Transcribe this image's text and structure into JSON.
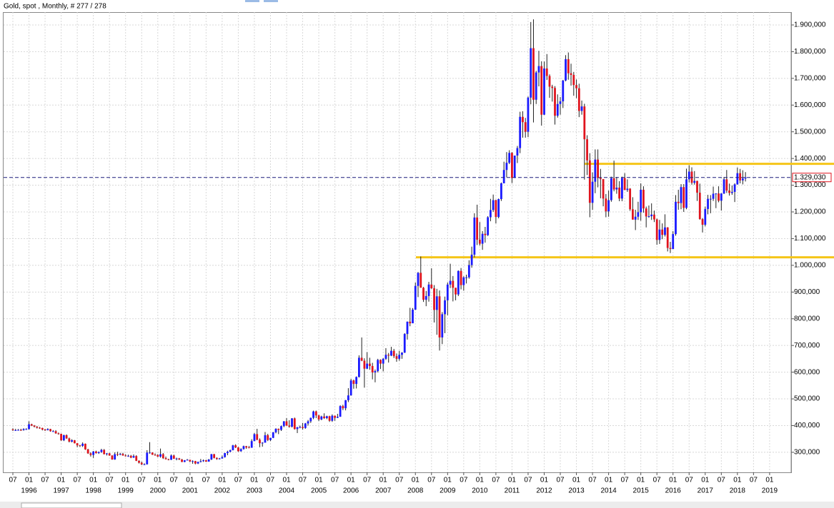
{
  "chart_data": {
    "type": "candlestick",
    "title": "Gold, spot , Monthly, # 277 / 278",
    "open": [
      386,
      383,
      383,
      384,
      383,
      387,
      387,
      405,
      400,
      396,
      392,
      391,
      385,
      383,
      387,
      379,
      379,
      371,
      369,
      345,
      364,
      352,
      340,
      345,
      334,
      326,
      324,
      332,
      311,
      296,
      290,
      303,
      297,
      301,
      309,
      293,
      296,
      288,
      273,
      293,
      292,
      294,
      288,
      287,
      287,
      280,
      286,
      268,
      261,
      255,
      255,
      299,
      299,
      291,
      290,
      284,
      293,
      278,
      274,
      272,
      288,
      276,
      277,
      273,
      264,
      270,
      272,
      266,
      267,
      258,
      264,
      267,
      270,
      265,
      273,
      293,
      279,
      275,
      277,
      282,
      297,
      302,
      308,
      326,
      318,
      304,
      312,
      323,
      318,
      317,
      342,
      368,
      347,
      334,
      336,
      364,
      346,
      354,
      375,
      388,
      384,
      398,
      416,
      400,
      396,
      427,
      387,
      394,
      395,
      391,
      408,
      416,
      429,
      453,
      438,
      423,
      434,
      428,
      435,
      418,
      437,
      429,
      433,
      473,
      465,
      495,
      513,
      569,
      556,
      582,
      654,
      643,
      613,
      632,
      623,
      599,
      604,
      646,
      632,
      650,
      665,
      662,
      680,
      660,
      650,
      665,
      673,
      743,
      789,
      783,
      834,
      923,
      972,
      916,
      871,
      885,
      928,
      914,
      833,
      884,
      730,
      817,
      869,
      928,
      942,
      916,
      891,
      979,
      926,
      955,
      955,
      1001,
      1040,
      1179,
      1096,
      1081,
      1118,
      1113,
      1180,
      1207,
      1244,
      1181,
      1248,
      1307,
      1357,
      1384,
      1421,
      1327,
      1411,
      1439,
      1556,
      1536,
      1500,
      1628,
      1813,
      1620,
      1722,
      1746,
      1564,
      1737,
      1709,
      1669,
      1664,
      1560,
      1604,
      1614,
      1692,
      1772,
      1719,
      1713,
      1675,
      1663,
      1578,
      1595,
      1472,
      1393,
      1234,
      1313,
      1396,
      1327,
      1323,
      1250,
      1202,
      1244,
      1326,
      1284,
      1291,
      1250,
      1327,
      1282,
      1287,
      1210,
      1171,
      1182,
      1199,
      1283,
      1213,
      1183,
      1184,
      1190,
      1172,
      1095,
      1134,
      1114,
      1142,
      1065,
      1061,
      1117,
      1238,
      1233,
      1293,
      1215,
      1322,
      1351,
      1309,
      1316,
      1272,
      1173,
      1152,
      1211,
      1249,
      1249,
      1268,
      1269,
      1242,
      1269,
      1322,
      1280,
      1271,
      1275,
      1303,
      1345,
      1318,
      1325
    ],
    "high": [
      390,
      388,
      387,
      388,
      390,
      390,
      416,
      407,
      402,
      398,
      395,
      392,
      388,
      390,
      388,
      383,
      383,
      374,
      370,
      366,
      367,
      355,
      349,
      346,
      335,
      328,
      337,
      333,
      313,
      300,
      305,
      306,
      303,
      313,
      312,
      297,
      298,
      289,
      300,
      302,
      298,
      298,
      293,
      291,
      290,
      292,
      289,
      270,
      265,
      259,
      308,
      338,
      300,
      296,
      293,
      314,
      297,
      284,
      276,
      292,
      291,
      280,
      279,
      275,
      271,
      275,
      272,
      270,
      268,
      265,
      275,
      273,
      272,
      275,
      294,
      294,
      281,
      279,
      288,
      298,
      306,
      310,
      328,
      330,
      320,
      315,
      325,
      324,
      324,
      349,
      372,
      388,
      352,
      338,
      376,
      369,
      354,
      376,
      390,
      389,
      400,
      417,
      428,
      420,
      428,
      430,
      395,
      400,
      410,
      410,
      421,
      430,
      456,
      456,
      441,
      437,
      446,
      437,
      437,
      442,
      437,
      444,
      476,
      478,
      496,
      540,
      575,
      572,
      584,
      663,
      730,
      652,
      675,
      654,
      635,
      610,
      650,
      648,
      653,
      690,
      672,
      695,
      687,
      670,
      680,
      675,
      746,
      790,
      841,
      840,
      936,
      975,
      1033,
      919,
      904,
      938,
      989,
      926,
      912,
      906,
      825,
      883,
      936,
      1006,
      960,
      916,
      981,
      990,
      959,
      965,
      1019,
      1070,
      1195,
      1227,
      1162,
      1128,
      1144,
      1184,
      1249,
      1265,
      1246,
      1250,
      1310,
      1388,
      1424,
      1431,
      1424,
      1411,
      1447,
      1575,
      1577,
      1552,
      1632,
      1911,
      1921,
      1728,
      1803,
      1764,
      1763,
      1791,
      1715,
      1676,
      1671,
      1640,
      1630,
      1694,
      1787,
      1797,
      1755,
      1724,
      1696,
      1680,
      1617,
      1605,
      1487,
      1420,
      1348,
      1434,
      1434,
      1361,
      1323,
      1267,
      1280,
      1332,
      1392,
      1331,
      1315,
      1332,
      1345,
      1322,
      1289,
      1255,
      1208,
      1238,
      1307,
      1296,
      1220,
      1224,
      1232,
      1205,
      1175,
      1170,
      1157,
      1191,
      1143,
      1088,
      1128,
      1263,
      1283,
      1304,
      1304,
      1362,
      1375,
      1367,
      1353,
      1317,
      1306,
      1177,
      1220,
      1264,
      1263,
      1295,
      1270,
      1296,
      1270,
      1331,
      1357,
      1306,
      1299,
      1307,
      1366,
      1361,
      1356,
      1349
    ],
    "low": [
      380,
      380,
      381,
      380,
      381,
      384,
      385,
      398,
      393,
      389,
      388,
      382,
      380,
      382,
      377,
      376,
      369,
      366,
      343,
      342,
      350,
      337,
      337,
      333,
      319,
      320,
      320,
      309,
      294,
      284,
      279,
      295,
      294,
      298,
      292,
      288,
      287,
      272,
      272,
      286,
      289,
      287,
      284,
      283,
      278,
      279,
      267,
      258,
      252,
      252,
      254,
      295,
      290,
      287,
      282,
      280,
      275,
      273,
      270,
      271,
      275,
      270,
      271,
      263,
      263,
      269,
      263,
      257,
      255,
      256,
      262,
      264,
      264,
      265,
      271,
      277,
      272,
      273,
      276,
      280,
      289,
      300,
      307,
      316,
      302,
      302,
      310,
      313,
      316,
      317,
      342,
      345,
      319,
      321,
      337,
      342,
      342,
      353,
      371,
      368,
      380,
      394,
      399,
      392,
      393,
      385,
      372,
      390,
      385,
      388,
      400,
      410,
      424,
      428,
      417,
      420,
      425,
      424,
      414,
      414,
      418,
      428,
      433,
      458,
      457,
      488,
      512,
      538,
      539,
      580,
      641,
      542,
      612,
      609,
      573,
      562,
      599,
      612,
      603,
      646,
      636,
      660,
      653,
      639,
      643,
      650,
      672,
      722,
      772,
      785,
      833,
      881,
      918,
      863,
      847,
      864,
      912,
      786,
      740,
      681,
      705,
      746,
      813,
      915,
      865,
      869,
      885,
      910,
      905,
      932,
      950,
      991,
      1030,
      1076,
      1074,
      1058,
      1085,
      1110,
      1165,
      1200,
      1157,
      1176,
      1241,
      1316,
      1330,
      1379,
      1308,
      1330,
      1383,
      1420,
      1478,
      1478,
      1480,
      1603,
      1535,
      1604,
      1670,
      1523,
      1563,
      1694,
      1627,
      1613,
      1527,
      1553,
      1564,
      1589,
      1689,
      1695,
      1673,
      1635,
      1626,
      1555,
      1564,
      1321,
      1338,
      1180,
      1208,
      1270,
      1292,
      1251,
      1221,
      1180,
      1182,
      1238,
      1277,
      1268,
      1240,
      1240,
      1282,
      1275,
      1204,
      1183,
      1132,
      1170,
      1167,
      1197,
      1142,
      1178,
      1170,
      1162,
      1077,
      1080,
      1098,
      1108,
      1052,
      1046,
      1061,
      1111,
      1208,
      1210,
      1200,
      1210,
      1310,
      1302,
      1302,
      1241,
      1171,
      1123,
      1146,
      1191,
      1195,
      1241,
      1214,
      1236,
      1205,
      1267,
      1271,
      1261,
      1264,
      1237,
      1302,
      1307,
      1303,
      1314
    ],
    "close": [
      383,
      383,
      384,
      383,
      387,
      387,
      405,
      400,
      396,
      392,
      391,
      385,
      383,
      387,
      379,
      379,
      371,
      369,
      345,
      364,
      352,
      340,
      345,
      334,
      326,
      324,
      332,
      311,
      296,
      290,
      303,
      297,
      301,
      309,
      293,
      296,
      288,
      273,
      293,
      292,
      294,
      288,
      287,
      287,
      280,
      286,
      268,
      261,
      255,
      255,
      299,
      299,
      291,
      290,
      284,
      293,
      278,
      274,
      272,
      288,
      276,
      277,
      273,
      264,
      270,
      272,
      266,
      267,
      258,
      264,
      267,
      270,
      265,
      273,
      293,
      279,
      275,
      277,
      282,
      297,
      302,
      308,
      326,
      318,
      304,
      312,
      323,
      318,
      317,
      342,
      368,
      347,
      334,
      336,
      364,
      346,
      354,
      375,
      388,
      384,
      398,
      416,
      400,
      396,
      427,
      387,
      394,
      395,
      391,
      408,
      416,
      429,
      453,
      438,
      423,
      434,
      428,
      435,
      418,
      437,
      429,
      433,
      473,
      465,
      495,
      513,
      569,
      556,
      582,
      654,
      643,
      613,
      632,
      623,
      599,
      604,
      646,
      632,
      650,
      665,
      662,
      680,
      660,
      650,
      665,
      673,
      743,
      789,
      783,
      834,
      923,
      972,
      916,
      871,
      885,
      928,
      914,
      833,
      884,
      730,
      817,
      869,
      928,
      942,
      916,
      891,
      979,
      926,
      955,
      955,
      1001,
      1040,
      1179,
      1096,
      1081,
      1118,
      1113,
      1180,
      1207,
      1244,
      1181,
      1248,
      1307,
      1357,
      1384,
      1421,
      1327,
      1411,
      1439,
      1556,
      1536,
      1500,
      1628,
      1813,
      1620,
      1722,
      1746,
      1564,
      1737,
      1709,
      1669,
      1664,
      1560,
      1604,
      1614,
      1692,
      1772,
      1719,
      1713,
      1675,
      1663,
      1578,
      1595,
      1472,
      1393,
      1234,
      1313,
      1396,
      1327,
      1323,
      1250,
      1202,
      1244,
      1326,
      1284,
      1291,
      1250,
      1327,
      1282,
      1287,
      1210,
      1171,
      1182,
      1199,
      1283,
      1213,
      1183,
      1184,
      1190,
      1172,
      1095,
      1134,
      1114,
      1142,
      1065,
      1061,
      1117,
      1238,
      1233,
      1293,
      1215,
      1322,
      1351,
      1309,
      1316,
      1272,
      1173,
      1152,
      1211,
      1249,
      1249,
      1268,
      1269,
      1242,
      1269,
      1322,
      1280,
      1271,
      1275,
      1303,
      1345,
      1318,
      1325,
      1329.03
    ],
    "up_color": "#1a1aff",
    "down_color": "#e0141e",
    "ylim": [
      225,
      1948
    ],
    "yticks": [
      {
        "value": 300,
        "label": "300,000"
      },
      {
        "value": 400,
        "label": "400,000"
      },
      {
        "value": 500,
        "label": "500,000"
      },
      {
        "value": 600,
        "label": "600,000"
      },
      {
        "value": 700,
        "label": "700,000"
      },
      {
        "value": 800,
        "label": "800,000"
      },
      {
        "value": 900,
        "label": "900,000"
      },
      {
        "value": 1000,
        "label": "1.000,000"
      },
      {
        "value": 1100,
        "label": "1.100,000"
      },
      {
        "value": 1200,
        "label": "1.200,000"
      },
      {
        "value": 1300,
        "label": "1.300,000"
      },
      {
        "value": 1400,
        "label": "1.400,000"
      },
      {
        "value": 1500,
        "label": "1.500,000"
      },
      {
        "value": 1600,
        "label": "1.600,000"
      },
      {
        "value": 1700,
        "label": "1.700,000"
      },
      {
        "value": 1800,
        "label": "1.800,000"
      },
      {
        "value": 1900,
        "label": "1.900,000"
      }
    ],
    "xtick_labels": [
      "07",
      "01",
      "07",
      "01",
      "07",
      "01",
      "07",
      "01",
      "07",
      "01",
      "07",
      "01",
      "07",
      "01",
      "07",
      "01",
      "07",
      "01",
      "07",
      "01",
      "07",
      "01",
      "07",
      "01",
      "07",
      "01",
      "07",
      "01",
      "07",
      "01",
      "07",
      "01",
      "07",
      "01",
      "07",
      "01",
      "07",
      "01",
      "07",
      "01",
      "07",
      "01",
      "07",
      "01",
      "07",
      "01",
      "07",
      "01"
    ],
    "year_labels": [
      "1996",
      "1997",
      "1998",
      "1999",
      "2000",
      "2001",
      "2002",
      "2003",
      "2004",
      "2005",
      "2006",
      "2007",
      "2008",
      "2009",
      "2010",
      "2011",
      "2012",
      "2013",
      "2014",
      "2015",
      "2016",
      "2017",
      "2018",
      "2019"
    ],
    "current_price": {
      "value": 1329.03,
      "label": "1.329,030"
    },
    "levels": [
      1380,
      1030
    ],
    "level_color": "#f5c518",
    "grid": true
  }
}
